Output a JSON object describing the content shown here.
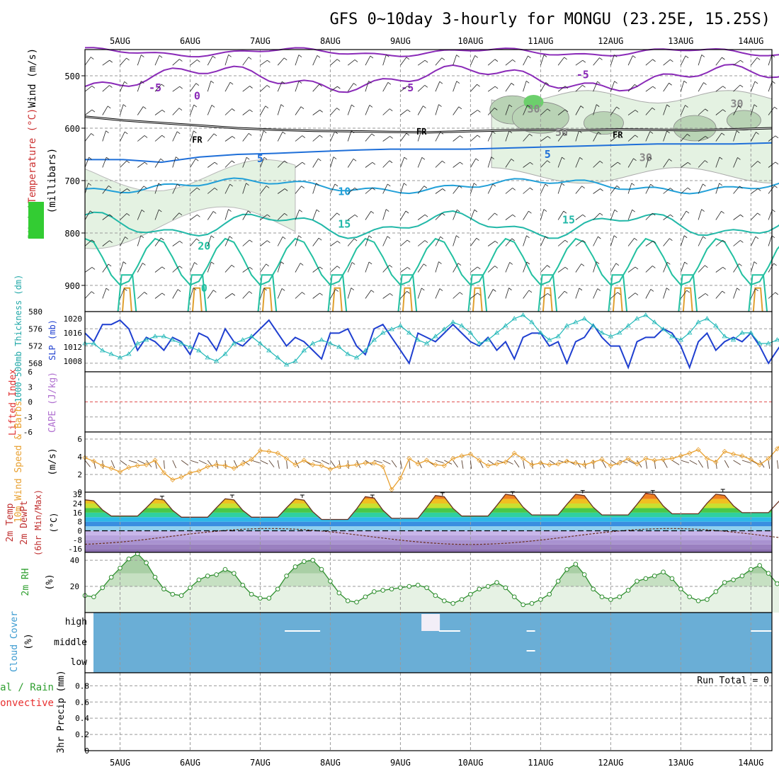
{
  "chart_data": {
    "title": "GFS 0~10day 3-hourly for MONGU (23.25E, 15.25S)",
    "type": "meteogram",
    "x_axis": {
      "tick_labels": [
        "5AUG",
        "6AUG",
        "7AUG",
        "8AUG",
        "9AUG",
        "10AUG",
        "11AUG",
        "12AUG",
        "13AUG",
        "14AUG"
      ],
      "days_shown": [
        4.5,
        14.3
      ],
      "grid": true
    },
    "panels": [
      {
        "id": "upper",
        "type": "heatmap",
        "ylabel_parts": [
          {
            "text": "RH (%)",
            "color": "#33aa33"
          },
          {
            "text": "Temperature (°C)",
            "color": "#cc3333"
          },
          {
            "text": "Wind (m/s)",
            "color": "#000000"
          }
        ],
        "yunits": "(millibars)",
        "y_reversed": true,
        "yticks": [
          500,
          600,
          700,
          800,
          900
        ],
        "ylim": [
          450,
          950
        ],
        "contour_labels": [
          "-5",
          "-5",
          "-5",
          "0",
          "FR",
          "FR",
          "FR",
          "5",
          "5",
          "10",
          "10",
          "15",
          "15",
          "20",
          "0",
          "30",
          "50",
          "30",
          "30"
        ],
        "freezing_level_mb": [
          578,
          585,
          590,
          595,
          600,
          603,
          605,
          606,
          607,
          608,
          606,
          604,
          603,
          604,
          602,
          603,
          604,
          602,
          600
        ],
        "temp_5C_level_mb": [
          660,
          660,
          665,
          655,
          650,
          648,
          645,
          642,
          640,
          640,
          640,
          638,
          636,
          634,
          632,
          630,
          630,
          630,
          628
        ],
        "rh_cloud_band": {
          "day_range": [
            10.3,
            14.3
          ],
          "level_mb": [
            560,
            690
          ],
          "max_rh": 70
        }
      },
      {
        "id": "thickness_slp",
        "type": "line",
        "ylabel_left": "1000-500mb Thickness (dm)",
        "ylabel_right": "SLP (mb)",
        "yticks_left": [
          568,
          572,
          576,
          580
        ],
        "yticks_right": [
          1008,
          1012,
          1016,
          1020
        ],
        "ylim_left": [
          566,
          580
        ],
        "ylim_right": [
          1005,
          1022
        ],
        "series": [
          {
            "axis": "left",
            "color": "#1f3fd0",
            "marker": "none",
            "values": [
              575,
              573,
              577,
              577,
              578,
              576,
              571,
              574,
              573,
              571,
              574,
              573,
              570,
              575,
              574,
              571,
              576,
              573,
              572,
              574,
              576,
              578,
              575,
              572,
              574,
              573,
              571,
              569,
              575,
              575,
              576,
              572,
              570,
              576,
              577,
              574,
              571,
              568,
              575,
              574,
              573,
              575,
              577,
              575,
              573,
              572,
              574,
              571,
              573,
              569,
              574,
              575,
              575,
              572,
              573,
              568,
              573,
              574,
              577,
              574,
              572,
              572,
              567,
              573,
              574,
              574,
              576,
              575,
              572,
              567,
              573,
              575,
              571,
              573,
              574,
              573,
              575,
              572,
              568,
              571,
              574
            ]
          },
          {
            "axis": "right",
            "color": "#22b8b8",
            "marker": "triangle",
            "values": [
              1013,
              1013,
              1011,
              1010,
              1009,
              1010,
              1013,
              1014,
              1015,
              1015,
              1014,
              1013,
              1012,
              1011,
              1009,
              1008,
              1010,
              1013,
              1014,
              1015,
              1013,
              1011,
              1009,
              1007,
              1008,
              1011,
              1013,
              1014,
              1013,
              1012,
              1010,
              1009,
              1011,
              1014,
              1016,
              1017,
              1018,
              1016,
              1014,
              1013,
              1015,
              1017,
              1019,
              1018,
              1016,
              1013,
              1014,
              1016,
              1018,
              1020,
              1021,
              1019,
              1016,
              1014,
              1015,
              1018,
              1019,
              1020,
              1018,
              1016,
              1015,
              1016,
              1018,
              1020,
              1021,
              1019,
              1017,
              1015,
              1014,
              1016,
              1019,
              1020,
              1018,
              1015,
              1014,
              1016,
              1016,
              1013,
              1013,
              1014,
              1015
            ]
          }
        ]
      },
      {
        "id": "instability",
        "type": "line",
        "ylabel_left": "Lifted Index",
        "ylabel_right": "CAPE (J/kg)",
        "yticks": [
          -6,
          -3,
          0,
          3,
          6
        ],
        "ytick_labels": [
          "-6",
          "-3",
          "0",
          "3",
          "6"
        ],
        "ylim": [
          -6,
          6
        ],
        "zero_line": true
      },
      {
        "id": "wind10m",
        "type": "line",
        "ylabel": "10m Wind Speed & Barbs",
        "yunits": "(m/s)",
        "yticks": [
          0,
          2,
          4,
          6
        ],
        "ylim": [
          0,
          6.8
        ],
        "series": [
          {
            "color": "#e8a030",
            "marker": "diamond",
            "values": [
              3.9,
              3.5,
              3.0,
              2.7,
              2.3,
              2.8,
              3.0,
              3.1,
              3.6,
              2.2,
              1.4,
              1.7,
              2.2,
              2.4,
              2.9,
              3.1,
              3.0,
              2.7,
              3.2,
              3.7,
              4.7,
              4.6,
              4.4,
              3.8,
              3.1,
              3.6,
              3.1,
              3.0,
              2.6,
              2.9,
              3.0,
              3.1,
              3.3,
              3.3,
              2.9,
              0.3,
              1.6,
              3.8,
              3.2,
              3.6,
              3.1,
              3.0,
              3.8,
              4.1,
              4.3,
              3.6,
              3.0,
              3.2,
              3.4,
              4.4,
              3.8,
              3.1,
              3.3,
              3.1,
              3.2,
              3.5,
              3.3,
              3.1,
              3.4,
              3.7,
              3.0,
              3.3,
              3.8,
              3.2,
              3.8,
              3.6,
              3.7,
              3.8,
              4.1,
              4.4,
              4.8,
              3.8,
              3.4,
              4.6,
              4.3,
              4.1,
              3.7,
              3.1,
              3.8,
              4.9,
              6.2
            ]
          }
        ]
      },
      {
        "id": "temp2m",
        "type": "area",
        "ylabel_parts": [
          "2m Temp",
          "2m DewPt",
          "(6hr Min/Max)"
        ],
        "yunits": "(°C)",
        "yticks": [
          -16,
          -8,
          0,
          8,
          16,
          24,
          32
        ],
        "ylim": [
          -19,
          34
        ],
        "temp_min_max_daily": [
          {
            "min": 13,
            "max": 28
          },
          {
            "min": 12,
            "max": 29
          },
          {
            "min": 12,
            "max": 29
          },
          {
            "min": 10,
            "max": 29
          },
          {
            "min": 11,
            "max": 31
          },
          {
            "min": 13,
            "max": 32
          },
          {
            "min": 14,
            "max": 33
          },
          {
            "min": 14,
            "max": 33
          },
          {
            "min": 15,
            "max": 34
          },
          {
            "min": 16,
            "max": 33
          }
        ],
        "dewpoint_range": [
          -12,
          2
        ]
      },
      {
        "id": "rh2m",
        "type": "line",
        "ylabel": "2m RH",
        "yunits": "(%)",
        "yticks": [
          20,
          40
        ],
        "ylim": [
          0,
          46
        ],
        "series": [
          {
            "color": "#2f8f2f",
            "marker": "circle",
            "values": [
              13,
              12,
              19,
              27,
              34,
              41,
              45,
              38,
              27,
              18,
              14,
              13,
              19,
              25,
              28,
              29,
              33,
              30,
              21,
              14,
              11,
              11,
              18,
              28,
              35,
              39,
              40,
              33,
              24,
              15,
              9,
              8,
              12,
              16,
              17,
              18,
              19,
              20,
              21,
              19,
              13,
              9,
              7,
              10,
              14,
              18,
              20,
              23,
              19,
              12,
              6,
              7,
              10,
              14,
              24,
              33,
              37,
              29,
              18,
              12,
              10,
              12,
              17,
              24,
              26,
              28,
              31,
              26,
              18,
              12,
              9,
              10,
              16,
              23,
              25,
              28,
              33,
              36,
              30,
              22,
              29
            ]
          }
        ]
      },
      {
        "id": "cloud",
        "type": "heatmap",
        "ylabel": "Cloud Cover",
        "yunits": "(%)",
        "ytick_labels": [
          "high",
          "middle",
          "low"
        ],
        "fill_color": "#6aaed6"
      },
      {
        "id": "precip",
        "type": "bar",
        "ylabel_left_parts": [
          {
            "text": "Total / Rain",
            "color": "#2f9f2f"
          },
          {
            "text": "Convective",
            "color": "#e83030"
          }
        ],
        "ylabel": "3hr Precip (mm)",
        "yticks": [
          0,
          0.2,
          0.4,
          0.6,
          0.8
        ],
        "ytick_labels": [
          "0",
          "0.2",
          "0.4",
          "0.6",
          "0.8"
        ],
        "ylim": [
          0,
          0.96
        ],
        "run_total_label": "Run Total = 0",
        "values": []
      }
    ]
  }
}
